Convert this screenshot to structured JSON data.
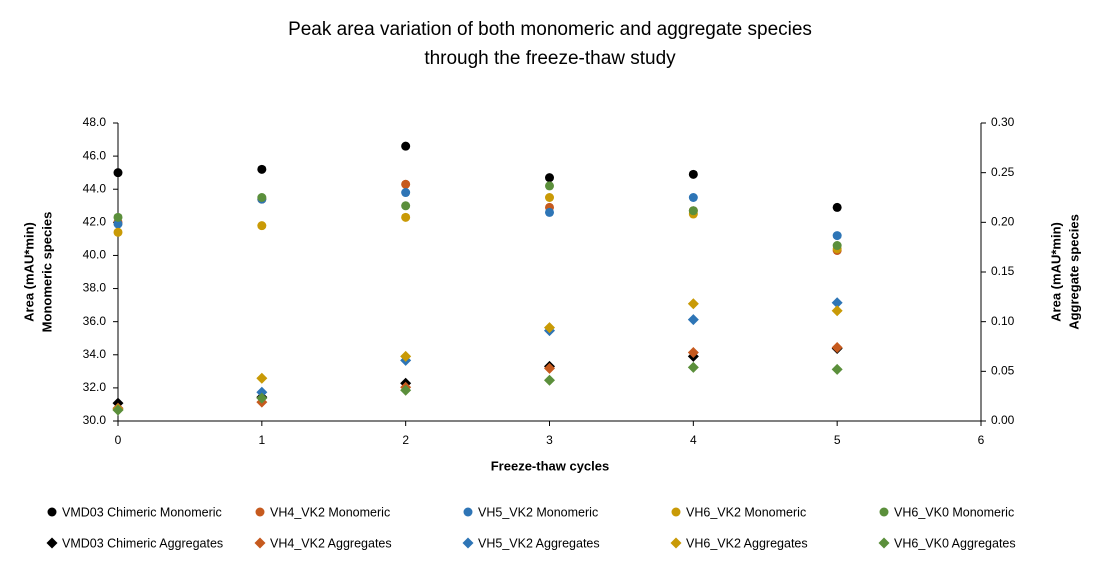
{
  "chart_data": {
    "type": "scatter",
    "title": [
      "Peak area variation of both monomeric and aggregate species",
      "through the freeze-thaw study"
    ],
    "x_label": "Freeze-thaw cycles",
    "y_label": [
      "Area (mAU*min)",
      "Monomeric species"
    ],
    "y2_label": [
      "Area (mAU*min)",
      "Aggregate species"
    ],
    "x": [
      0,
      1,
      2,
      3,
      4,
      5
    ],
    "xlim": [
      0,
      6
    ],
    "xticks": [
      0,
      1,
      2,
      3,
      4,
      5,
      6
    ],
    "ylim": [
      30,
      48
    ],
    "yticks": [
      {
        "value": 30,
        "label": "30.0"
      },
      {
        "value": 32,
        "label": "32.0"
      },
      {
        "value": 34,
        "label": "34.0"
      },
      {
        "value": 36,
        "label": "36.0"
      },
      {
        "value": 38,
        "label": "38.0"
      },
      {
        "value": 40,
        "label": "40.0"
      },
      {
        "value": 42,
        "label": "42.0"
      },
      {
        "value": 44,
        "label": "44.0"
      },
      {
        "value": 46,
        "label": "46.0"
      },
      {
        "value": 48,
        "label": "48.0"
      }
    ],
    "y2lim": [
      0,
      0.3
    ],
    "y2ticks": [
      {
        "value": 0,
        "label": "0.00"
      },
      {
        "value": 0.05,
        "label": "0.05"
      },
      {
        "value": 0.1,
        "label": "0.10"
      },
      {
        "value": 0.15,
        "label": "0.15"
      },
      {
        "value": 0.2,
        "label": "0.20"
      },
      {
        "value": 0.25,
        "label": "0.25"
      },
      {
        "value": 0.3,
        "label": "0.30"
      }
    ],
    "series": [
      {
        "name": "VMD03 Chimeric Monomeric",
        "color": "#000000",
        "marker": "circle",
        "values": [
          45.0,
          45.2,
          46.6,
          44.7,
          44.9,
          42.9
        ]
      },
      {
        "name": "VH4_VK2 Monomeric",
        "color": "#c65a1e",
        "marker": "circle",
        "values": [
          42.0,
          43.4,
          44.3,
          42.9,
          42.7,
          40.3
        ]
      },
      {
        "name": "VH5_VK2 Monomeric",
        "color": "#2e75b6",
        "marker": "circle",
        "values": [
          41.9,
          43.4,
          43.8,
          42.6,
          43.5,
          41.2
        ]
      },
      {
        "name": "VH6_VK2 Monomeric",
        "color": "#c99a06",
        "marker": "circle",
        "values": [
          41.4,
          41.8,
          42.3,
          43.5,
          42.5,
          40.4
        ]
      },
      {
        "name": "VH6_VK0 Monomeric",
        "color": "#5b8f3b",
        "marker": "circle",
        "values": [
          42.3,
          43.5,
          43.0,
          44.2,
          42.7,
          40.6
        ]
      },
      {
        "name": "VMD03 Chimeric Aggregates",
        "color": "#000000",
        "marker": "diamond",
        "axis": "y2",
        "values": [
          0.018,
          0.024,
          0.038,
          0.055,
          0.065,
          0.073
        ]
      },
      {
        "name": "VH4_VK2 Aggregates",
        "color": "#c65a1e",
        "marker": "diamond",
        "axis": "y2",
        "values": [
          0.013,
          0.019,
          0.034,
          0.053,
          0.069,
          0.074
        ]
      },
      {
        "name": "VH5_VK2 Aggregates",
        "color": "#2e75b6",
        "marker": "diamond",
        "axis": "y2",
        "values": [
          0.012,
          0.029,
          0.061,
          0.091,
          0.102,
          0.119
        ]
      },
      {
        "name": "VH6_VK2 Aggregates",
        "color": "#c99a06",
        "marker": "diamond",
        "axis": "y2",
        "values": [
          0.012,
          0.043,
          0.065,
          0.094,
          0.118,
          0.111
        ]
      },
      {
        "name": "VH6_VK0 Aggregates",
        "color": "#5b8f3b",
        "marker": "diamond",
        "axis": "y2",
        "values": [
          0.011,
          0.023,
          0.031,
          0.041,
          0.054,
          0.052
        ]
      }
    ]
  }
}
